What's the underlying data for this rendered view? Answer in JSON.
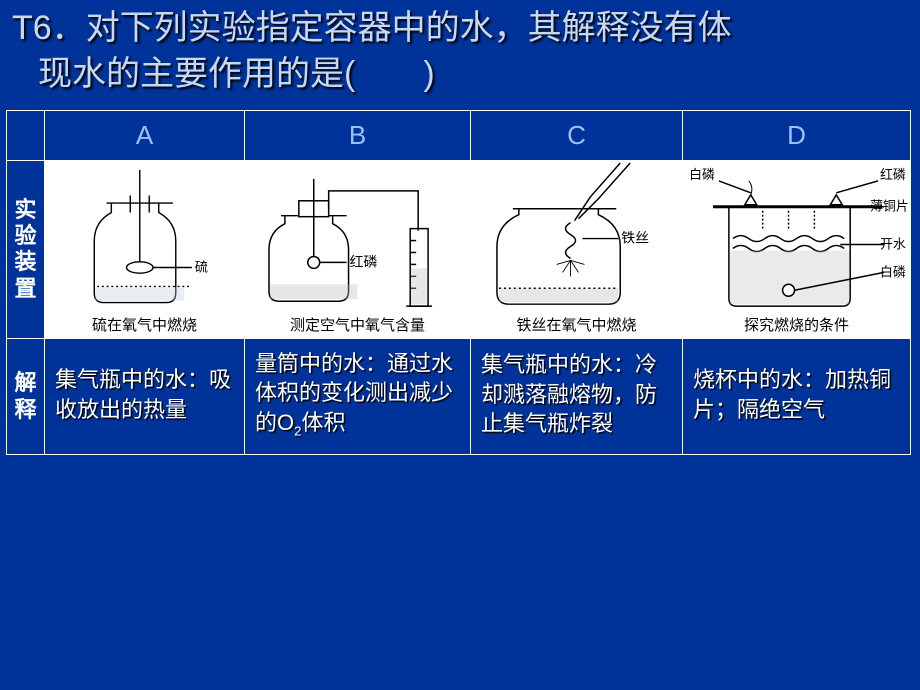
{
  "question": {
    "number": "T6．",
    "text_line1": "对下列实验指定容器中的水，其解释没有体",
    "text_line2": "现水的主要作用的是(　　)"
  },
  "columns": [
    "A",
    "B",
    "C",
    "D"
  ],
  "row_labels": {
    "device": "实验装置",
    "explain": "解释"
  },
  "captions": {
    "A": "硫在氧气中燃烧",
    "B": "测定空气中氧气含量",
    "C": "铁丝在氧气中燃烧",
    "D": "探究燃烧的条件"
  },
  "labels": {
    "A_sulfur": "硫",
    "B_redp": "红磷",
    "C_iron": "铁丝",
    "D_baip": "白磷",
    "D_hongp": "红磷",
    "D_botong": "薄铜片",
    "D_kaishui": "开水",
    "D_baip2": "白磷"
  },
  "explanations": {
    "A": "集气瓶中的水：吸收放出的热量",
    "B_pre": "量筒中的水：通过水体积的变化测出减少的O",
    "B_sub": "2",
    "B_post": "体积",
    "C": "集气瓶中的水：冷却溅落融熔物，防止集气瓶炸裂",
    "D": "烧杯中的水：加热铜片；隔绝空气"
  },
  "colors": {
    "bg": "#003399",
    "headtext": "#9ec0f8",
    "qtext": "#c8d8f0",
    "border": "#ffffff",
    "diagram_stroke": "#000000"
  }
}
